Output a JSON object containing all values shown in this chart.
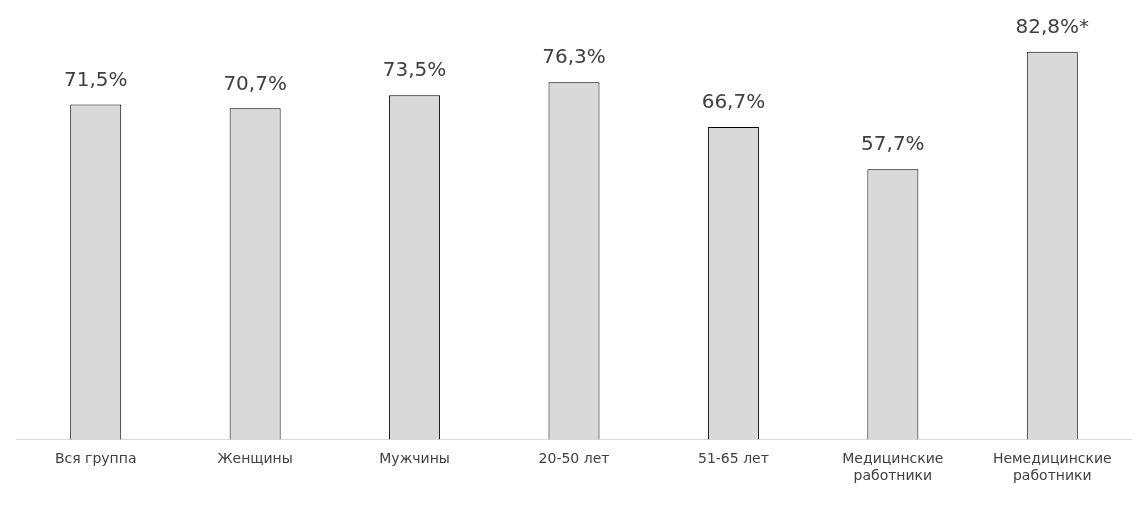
{
  "chart_data": {
    "type": "bar",
    "categories": [
      "Вся группа",
      "Женщины",
      "Мужчины",
      "20-50 лет",
      "51-65 лет",
      "Медицинские работники",
      "Немедицинские работники"
    ],
    "values": [
      71.5,
      70.7,
      73.5,
      76.3,
      66.7,
      57.7,
      82.8
    ],
    "value_labels": [
      "71,5%",
      "70,7%",
      "73,5%",
      "76,3%",
      "66,7%",
      "57,7%",
      "82,8%*"
    ],
    "color": "#d9d9d9",
    "relative": false,
    "grid": false,
    "legend": false
  }
}
